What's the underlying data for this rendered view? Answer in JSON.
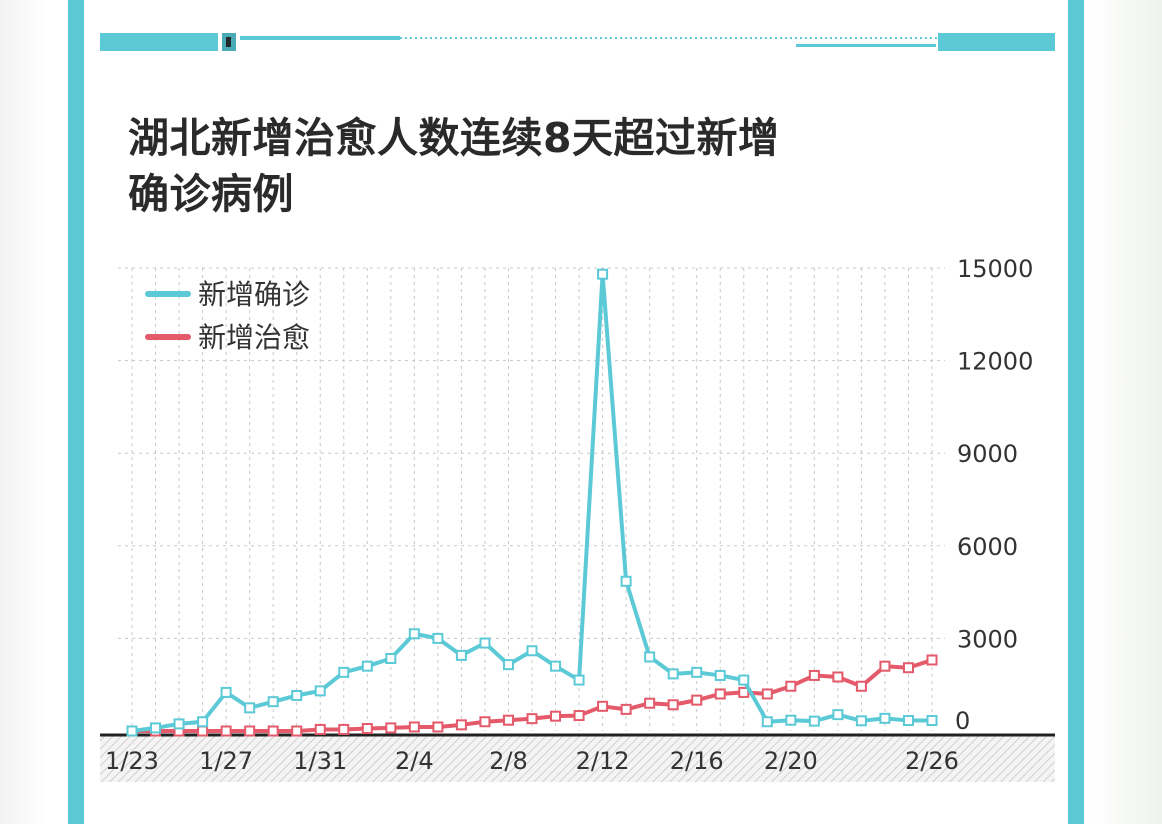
{
  "title_lines": [
    "湖北新增治愈人数连续8天超过新增",
    "确诊病例"
  ],
  "colors": {
    "accent": "#5bc9d6",
    "cured": "#e45a6a",
    "axis": "#222222",
    "grid": "#c8c8c8"
  },
  "chart_data": {
    "type": "line",
    "title": "湖北新增治愈人数连续8天超过新增确诊病例",
    "x": [
      "1/23",
      "1/24",
      "1/25",
      "1/26",
      "1/27",
      "1/28",
      "1/29",
      "1/30",
      "1/31",
      "2/1",
      "2/2",
      "2/3",
      "2/4",
      "2/5",
      "2/6",
      "2/7",
      "2/8",
      "2/9",
      "2/10",
      "2/11",
      "2/12",
      "2/13",
      "2/14",
      "2/15",
      "2/16",
      "2/17",
      "2/18",
      "2/19",
      "2/20",
      "2/21",
      "2/22",
      "2/23",
      "2/24",
      "2/25",
      "2/26"
    ],
    "x_tick_labels": [
      "1/23",
      "1/27",
      "1/31",
      "2/4",
      "2/8",
      "2/12",
      "2/16",
      "2/20",
      "2/26"
    ],
    "y_tick_labels": [
      "15000",
      "12000",
      "9000",
      "6000",
      "3000",
      "0"
    ],
    "ylim": [
      0,
      15000
    ],
    "y_axis_position": "right",
    "grid": true,
    "legend_position": "top-left",
    "series": [
      {
        "name": "新增确诊",
        "color": "#5bc9d6",
        "values": [
          0,
          100,
          230,
          300,
          1250,
          750,
          950,
          1150,
          1300,
          1900,
          2100,
          2350,
          3150,
          3000,
          2450,
          2850,
          2150,
          2600,
          2100,
          1650,
          14800,
          4850,
          2400,
          1850,
          1900,
          1800,
          1650,
          300,
          350,
          320,
          530,
          330,
          410,
          340,
          340
        ]
      },
      {
        "name": "新增治愈",
        "color": "#e45a6a",
        "values": [
          0,
          0,
          0,
          0,
          0,
          0,
          0,
          0,
          50,
          50,
          80,
          100,
          130,
          130,
          200,
          300,
          350,
          400,
          480,
          500,
          800,
          700,
          900,
          850,
          1000,
          1200,
          1250,
          1200,
          1450,
          1800,
          1750,
          1450,
          2100,
          2050,
          2300
        ]
      }
    ]
  }
}
